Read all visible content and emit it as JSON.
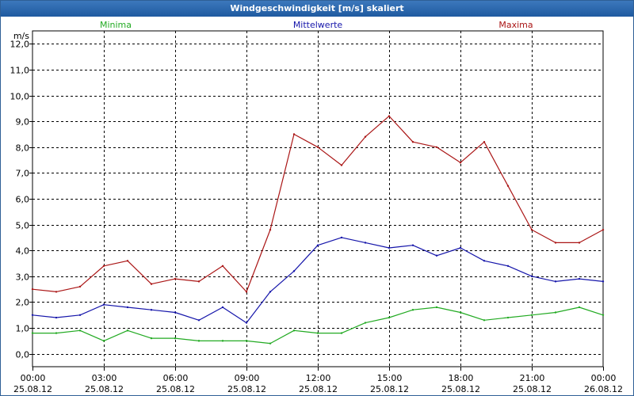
{
  "window": {
    "title": "Windgeschwindigkeit [m/s] skaliert"
  },
  "chart_data": {
    "type": "line",
    "title": "Windgeschwindigkeit [m/s] skaliert",
    "ylabel": "m/s",
    "xlabel": "",
    "ylim": [
      -0.5,
      12.5
    ],
    "xlim": [
      0,
      24
    ],
    "y_ticks": [
      "0,0",
      "1,0",
      "2,0",
      "3,0",
      "4,0",
      "5,0",
      "6,0",
      "7,0",
      "8,0",
      "9,0",
      "10,0",
      "11,0",
      "12,0"
    ],
    "x_ticks": [
      {
        "time": "00:00",
        "date": "25.08.12"
      },
      {
        "time": "03:00",
        "date": "25.08.12"
      },
      {
        "time": "06:00",
        "date": "25.08.12"
      },
      {
        "time": "09:00",
        "date": "25.08.12"
      },
      {
        "time": "12:00",
        "date": "25.08.12"
      },
      {
        "time": "15:00",
        "date": "25.08.12"
      },
      {
        "time": "18:00",
        "date": "25.08.12"
      },
      {
        "time": "21:00",
        "date": "25.08.12"
      },
      {
        "time": "00:00",
        "date": "26.08.12"
      }
    ],
    "grid": true,
    "x_hours": [
      0,
      1,
      2,
      3,
      4,
      5,
      6,
      7,
      8,
      9,
      10,
      11,
      12,
      13,
      14,
      15,
      16,
      17,
      18,
      19,
      20,
      21,
      22,
      23,
      24
    ],
    "series": [
      {
        "name": "Minima",
        "color": "#22aa22",
        "legend_position": "left",
        "values": [
          0.8,
          0.8,
          0.9,
          0.5,
          0.9,
          0.6,
          0.6,
          0.5,
          0.5,
          0.5,
          0.4,
          0.9,
          0.8,
          0.8,
          1.2,
          1.4,
          1.7,
          1.8,
          1.6,
          1.3,
          1.4,
          1.5,
          1.6,
          1.8,
          1.5
        ]
      },
      {
        "name": "Mittelwerte",
        "color": "#1515aa",
        "legend_position": "center",
        "values": [
          1.5,
          1.4,
          1.5,
          1.9,
          1.8,
          1.7,
          1.6,
          1.3,
          1.8,
          1.2,
          2.4,
          3.2,
          4.2,
          4.5,
          4.3,
          4.1,
          4.2,
          3.8,
          4.1,
          3.6,
          3.4,
          3.0,
          2.8,
          2.9,
          2.8
        ]
      },
      {
        "name": "Maxima",
        "color": "#aa1515",
        "legend_position": "right",
        "values": [
          2.5,
          2.4,
          2.6,
          3.4,
          3.6,
          2.7,
          2.9,
          2.8,
          3.4,
          2.4,
          4.8,
          8.5,
          8.0,
          7.3,
          8.4,
          9.2,
          8.2,
          8.0,
          7.4,
          8.2,
          6.5,
          4.8,
          4.3,
          4.3,
          4.8
        ]
      }
    ]
  }
}
